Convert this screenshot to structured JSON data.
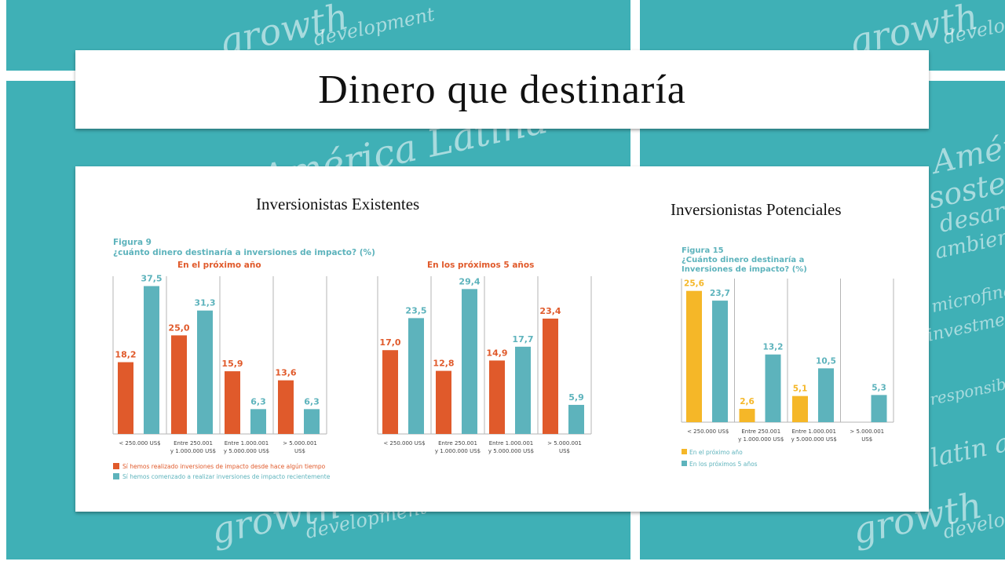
{
  "slide": {
    "title": "Dinero que destinaría",
    "left_heading": "Inversionistas Existentes",
    "right_heading": "Inversionistas Potenciales"
  },
  "background_words": [
    "growth",
    "development",
    "América Latina",
    "sostenibilidad",
    "desarrollo",
    "ambiental",
    "microfinanzas",
    "latin america",
    "responsibility",
    "investment"
  ],
  "colors": {
    "orange": "#e05a2b",
    "teal": "#5db3bc",
    "yellow": "#f5b728",
    "panel_bg": "#3fb0b6"
  },
  "chart_data": [
    {
      "type": "bar",
      "figure_label": "Figura 9",
      "question": "¿cuánto dinero destinaría a inversiones de impacto? (%)",
      "subtitle": "En el próximo año",
      "categories": [
        "< 250.000 US$",
        "Entre 250.001 y 1.000.000 US$",
        "Entre 1.000.001 y 5.000.000 US$",
        "> 5.000.001 US$"
      ],
      "series": [
        {
          "name": "Sí hemos realizado inversiones de impacto desde hace algún tiempo",
          "color": "#e05a2b",
          "values": [
            18.2,
            25.0,
            15.9,
            13.6
          ],
          "labels": [
            "18,2",
            "25,0",
            "15,9",
            "13,6"
          ]
        },
        {
          "name": "Sí hemos comenzado a realizar inversiones de impacto recientemente",
          "color": "#5db3bc",
          "values": [
            37.5,
            31.3,
            6.3,
            6.3
          ],
          "labels": [
            "37,5",
            "31,3",
            "6,3",
            "6,3"
          ]
        }
      ],
      "ylim": [
        0,
        40
      ]
    },
    {
      "type": "bar",
      "subtitle": "En los próximos 5 años",
      "categories": [
        "< 250.000 US$",
        "Entre 250.001 y 1.000.000 US$",
        "Entre 1.000.001 y 5.000.000 US$",
        "> 5.000.001 US$"
      ],
      "series": [
        {
          "name": "Sí hemos realizado inversiones de impacto desde hace algún tiempo",
          "color": "#e05a2b",
          "values": [
            17.0,
            12.8,
            14.9,
            23.4
          ],
          "labels": [
            "17,0",
            "12,8",
            "14,9",
            "23,4"
          ]
        },
        {
          "name": "Sí hemos comenzado a realizar inversiones de impacto recientemente",
          "color": "#5db3bc",
          "values": [
            23.5,
            29.4,
            17.7,
            5.9
          ],
          "labels": [
            "23,5",
            "29,4",
            "17,7",
            "5,9"
          ]
        }
      ],
      "ylim": [
        0,
        32
      ]
    },
    {
      "type": "bar",
      "figure_label": "Figura 15",
      "question": "¿Cuánto dinero destinaría a Inversiones de impacto? (%)",
      "categories": [
        "< 250.000 US$",
        "Entre 250.001 y 1.000.000 US$",
        "Entre 1.000.001 y 5.000.000 US$",
        "> 5.000.001 US$"
      ],
      "series": [
        {
          "name": "En el próximo año",
          "color": "#f5b728",
          "values": [
            25.6,
            2.6,
            5.1,
            0
          ],
          "labels": [
            "25,6",
            "2,6",
            "5,1",
            ""
          ]
        },
        {
          "name": "En los próximos 5 años",
          "color": "#5db3bc",
          "values": [
            23.7,
            13.2,
            10.5,
            5.3
          ],
          "labels": [
            "23,7",
            "13,2",
            "10,5",
            "5,3"
          ]
        }
      ],
      "ylim": [
        0,
        28
      ]
    }
  ]
}
